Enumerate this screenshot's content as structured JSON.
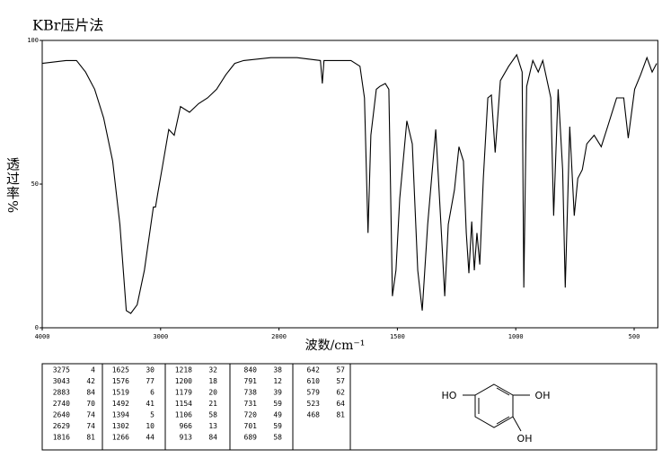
{
  "chart_data": {
    "type": "line",
    "title": "KBr压片法",
    "x_label": "波数/cm⁻¹",
    "y_label": "透过率%",
    "color": "#000000",
    "x": [
      4000,
      3800,
      3710,
      3634,
      3557,
      3481,
      3405,
      3344,
      3290,
      3252,
      3198,
      3137,
      3061,
      3043,
      3023,
      2985,
      2931,
      2885,
      2832,
      2756,
      2679,
      2603,
      2527,
      2450,
      2374,
      2298,
      2069,
      1924,
      1825,
      1817,
      1810,
      1696,
      1658,
      1639,
      1624,
      1612,
      1589,
      1574,
      1551,
      1536,
      1521,
      1506,
      1490,
      1460,
      1437,
      1414,
      1395,
      1372,
      1338,
      1316,
      1300,
      1285,
      1259,
      1240,
      1221,
      1209,
      1198,
      1186,
      1175,
      1164,
      1152,
      1137,
      1118,
      1103,
      1087,
      1065,
      1030,
      996,
      973,
      966,
      954,
      928,
      905,
      886,
      852,
      840,
      821,
      802,
      791,
      772,
      753,
      738,
      719,
      700,
      669,
      639,
      612,
      574,
      544,
      525,
      498,
      473,
      446,
      424,
      405
    ],
    "values": [
      92,
      93,
      93,
      89,
      83,
      73,
      58,
      36,
      6,
      5,
      8,
      20,
      42,
      42,
      47,
      56,
      69,
      67,
      77,
      75,
      78,
      80,
      83,
      88,
      92,
      93,
      94,
      94,
      93,
      85,
      93,
      93,
      91,
      80,
      33,
      67,
      83,
      84,
      85,
      83,
      11,
      20,
      45,
      72,
      64,
      20,
      6,
      36,
      69,
      36,
      11,
      36,
      48,
      63,
      58,
      33,
      19,
      37,
      20,
      33,
      22,
      52,
      80,
      81,
      61,
      86,
      91,
      95,
      89,
      14,
      84,
      93,
      89,
      93,
      80,
      39,
      83,
      55,
      14,
      70,
      39,
      52,
      55,
      64,
      67,
      63,
      70,
      80,
      80,
      66,
      83,
      88,
      94,
      89,
      92
    ],
    "xlim": [
      4000,
      400
    ],
    "xticks": [
      4000,
      3000,
      2000,
      1500,
      1000,
      500
    ],
    "ylim": [
      0,
      100
    ],
    "yticks": [
      0,
      50,
      100
    ]
  },
  "peak_table": [
    [
      3275,
      4
    ],
    [
      3043,
      42
    ],
    [
      2883,
      84
    ],
    [
      2740,
      70
    ],
    [
      2640,
      74
    ],
    [
      2629,
      74
    ],
    [
      1816,
      81
    ],
    [
      1625,
      30
    ],
    [
      1576,
      77
    ],
    [
      1519,
      6
    ],
    [
      1492,
      41
    ],
    [
      1394,
      5
    ],
    [
      1302,
      10
    ],
    [
      1266,
      44
    ],
    [
      1218,
      32
    ],
    [
      1200,
      18
    ],
    [
      1179,
      20
    ],
    [
      1154,
      21
    ],
    [
      1106,
      58
    ],
    [
      966,
      13
    ],
    [
      913,
      84
    ],
    [
      840,
      38
    ],
    [
      791,
      12
    ],
    [
      738,
      39
    ],
    [
      731,
      59
    ],
    [
      720,
      49
    ],
    [
      701,
      59
    ],
    [
      689,
      58
    ],
    [
      642,
      57
    ],
    [
      610,
      57
    ],
    [
      579,
      62
    ],
    [
      523,
      64
    ],
    [
      468,
      81
    ]
  ],
  "structure": {
    "labels": [
      "HO",
      "OH",
      "OH"
    ]
  }
}
